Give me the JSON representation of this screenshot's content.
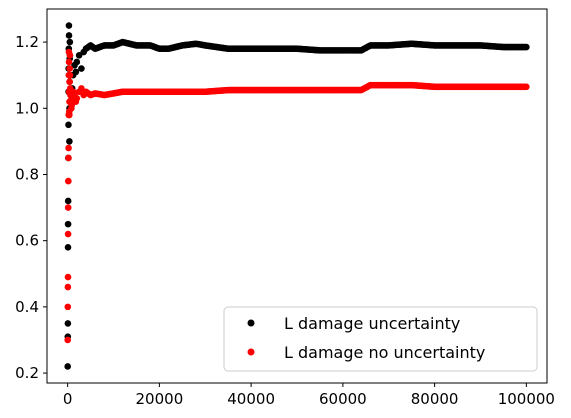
{
  "chart_data": {
    "type": "scatter",
    "title": "",
    "xlabel": "",
    "ylabel": "",
    "xlim": [
      -4500,
      104500
    ],
    "ylim": [
      0.17,
      1.3
    ],
    "x_ticks": [
      0,
      20000,
      40000,
      60000,
      80000,
      100000
    ],
    "x_tick_labels": [
      "0",
      "20000",
      "40000",
      "60000",
      "80000",
      "100000"
    ],
    "y_ticks": [
      0.2,
      0.4,
      0.6,
      0.8,
      1.0,
      1.2
    ],
    "y_tick_labels": [
      "0.2",
      "0.4",
      "0.6",
      "0.8",
      "1.0",
      "1.2"
    ],
    "grid": false,
    "legend_position": "lower-right",
    "series": [
      {
        "name": "L damage uncertainty",
        "color": "#000000",
        "x": [
          10,
          30,
          50,
          80,
          100,
          120,
          150,
          180,
          200,
          220,
          250,
          280,
          300,
          330,
          350,
          380,
          400,
          430,
          450,
          480,
          500,
          550,
          600,
          700,
          800,
          900,
          1000,
          1200,
          1500,
          1800,
          2000,
          2500,
          3000,
          3500,
          4000,
          5000,
          6000,
          8000,
          10000,
          12000,
          15000,
          18000,
          20000,
          22000,
          25000,
          28000,
          30000,
          35000,
          40000,
          45000,
          50000,
          55000,
          60000,
          64000,
          66000,
          70000,
          75000,
          80000,
          85000,
          90000,
          95000,
          100000
        ],
        "y": [
          0.22,
          0.31,
          0.35,
          0.58,
          0.65,
          0.72,
          0.85,
          0.95,
          1.05,
          1.12,
          1.18,
          1.25,
          1.22,
          1.1,
          0.98,
          0.9,
          1.0,
          1.08,
          1.15,
          1.2,
          1.16,
          1.1,
          1.05,
          1.02,
          1.0,
          1.03,
          1.06,
          1.1,
          1.13,
          1.11,
          1.14,
          1.16,
          1.12,
          1.17,
          1.18,
          1.19,
          1.18,
          1.19,
          1.19,
          1.2,
          1.19,
          1.19,
          1.18,
          1.18,
          1.19,
          1.195,
          1.19,
          1.18,
          1.18,
          1.18,
          1.18,
          1.175,
          1.175,
          1.175,
          1.19,
          1.19,
          1.195,
          1.19,
          1.19,
          1.19,
          1.185,
          1.185
        ]
      },
      {
        "name": "L damage no uncertainty",
        "color": "#ff0000",
        "x": [
          10,
          30,
          50,
          80,
          100,
          120,
          150,
          180,
          200,
          220,
          250,
          280,
          300,
          330,
          350,
          380,
          400,
          430,
          450,
          480,
          500,
          550,
          600,
          700,
          800,
          900,
          1000,
          1200,
          1500,
          1800,
          2000,
          2500,
          3000,
          3500,
          4000,
          5000,
          6000,
          8000,
          10000,
          12000,
          15000,
          18000,
          20000,
          22000,
          25000,
          28000,
          30000,
          35000,
          40000,
          45000,
          50000,
          55000,
          60000,
          64000,
          66000,
          70000,
          75000,
          80000,
          85000,
          90000,
          95000,
          100000
        ],
        "y": [
          0.3,
          0.4,
          0.46,
          0.49,
          0.62,
          0.7,
          0.78,
          0.85,
          0.88,
          0.98,
          1.1,
          1.17,
          1.14,
          1.05,
          0.99,
          0.98,
          1.02,
          1.08,
          1.12,
          1.16,
          1.1,
          1.06,
          1.04,
          1.02,
          1.0,
          1.01,
          1.03,
          1.05,
          1.04,
          1.02,
          1.03,
          1.05,
          1.06,
          1.04,
          1.05,
          1.04,
          1.045,
          1.04,
          1.045,
          1.05,
          1.05,
          1.05,
          1.05,
          1.05,
          1.05,
          1.05,
          1.05,
          1.055,
          1.055,
          1.055,
          1.055,
          1.055,
          1.055,
          1.055,
          1.07,
          1.07,
          1.07,
          1.065,
          1.065,
          1.065,
          1.065,
          1.065
        ]
      }
    ]
  }
}
